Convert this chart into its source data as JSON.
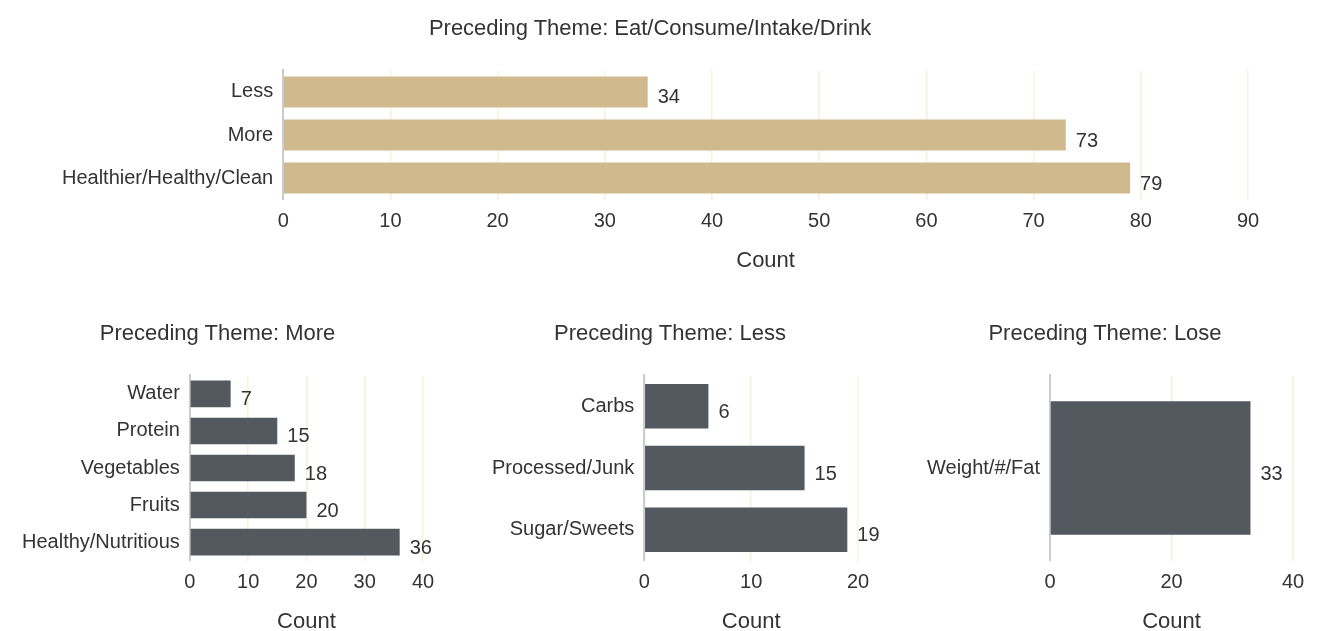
{
  "chart_data": [
    {
      "type": "bar",
      "orientation": "horizontal",
      "title": "Preceding Theme: Eat/Consume/Intake/Drink",
      "xlabel": "Count",
      "categories": [
        "Less",
        "More",
        "Healthier/Healthy/Clean"
      ],
      "values": [
        34,
        73,
        79
      ],
      "color": "#d1b98e",
      "xlim": [
        0,
        90
      ],
      "xticks": [
        0,
        10,
        20,
        30,
        40,
        50,
        60,
        70,
        80,
        90
      ],
      "grid": "x",
      "legend": false,
      "data_labels": true
    },
    {
      "type": "bar",
      "orientation": "horizontal",
      "title": "Preceding Theme: More",
      "xlabel": "Count",
      "categories": [
        "Water",
        "Protein",
        "Vegetables",
        "Fruits",
        "Healthy/Nutritious"
      ],
      "values": [
        7,
        15,
        18,
        20,
        36
      ],
      "color": "#54585f",
      "xlim": [
        0,
        40
      ],
      "xticks": [
        0,
        10,
        20,
        30,
        40
      ],
      "grid": "x",
      "legend": false,
      "data_labels": true
    },
    {
      "type": "bar",
      "orientation": "horizontal",
      "title": "Preceding Theme: Less",
      "xlabel": "Count",
      "categories": [
        "Carbs",
        "Processed/Junk",
        "Sugar/Sweets"
      ],
      "values": [
        6,
        15,
        19
      ],
      "color": "#54585f",
      "xlim": [
        0,
        20
      ],
      "xticks": [
        0,
        10,
        20
      ],
      "grid": "x",
      "legend": false,
      "data_labels": true
    },
    {
      "type": "bar",
      "orientation": "horizontal",
      "title": "Preceding Theme: Lose",
      "xlabel": "Count",
      "categories": [
        "Weight/#/Fat"
      ],
      "values": [
        33
      ],
      "color": "#54585f",
      "xlim": [
        0,
        40
      ],
      "xticks": [
        0,
        20,
        40
      ],
      "grid": "x",
      "legend": false,
      "data_labels": true
    }
  ]
}
